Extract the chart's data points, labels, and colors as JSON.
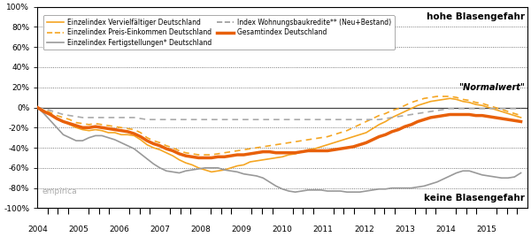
{
  "title_top_right": "hohe Blasengefahr",
  "title_bottom_right": "keine Blasengefahr",
  "normal_wert_label": "\"Normalwert\"",
  "empirica_label": "empirica",
  "ylim": [
    -1.0,
    1.0
  ],
  "yticks": [
    -1.0,
    -0.8,
    -0.6,
    -0.4,
    -0.2,
    0.0,
    0.2,
    0.4,
    0.6,
    0.8,
    1.0
  ],
  "yticklabels": [
    "-100%",
    "-80%",
    "-60%",
    "-40%",
    "-20%",
    "0%",
    "20%",
    "40%",
    "60%",
    "80%",
    "100%"
  ],
  "bg_color": "#ffffff",
  "plot_bg_color": "#ffffff",
  "border_color": "#000000",
  "grid_color": "#555555",
  "years": [
    2004,
    2005,
    2006,
    2007,
    2008,
    2009,
    2010,
    2011,
    2012,
    2013,
    2014,
    2015
  ],
  "series": {
    "vervielfaeltiger": [
      0.0,
      -0.03,
      -0.07,
      -0.11,
      -0.14,
      -0.17,
      -0.2,
      -0.22,
      -0.23,
      -0.22,
      -0.23,
      -0.25,
      -0.25,
      -0.27,
      -0.27,
      -0.28,
      -0.32,
      -0.37,
      -0.4,
      -0.42,
      -0.45,
      -0.48,
      -0.52,
      -0.55,
      -0.57,
      -0.6,
      -0.62,
      -0.64,
      -0.63,
      -0.62,
      -0.6,
      -0.58,
      -0.57,
      -0.54,
      -0.53,
      -0.52,
      -0.51,
      -0.5,
      -0.49,
      -0.47,
      -0.46,
      -0.44,
      -0.42,
      -0.41,
      -0.39,
      -0.37,
      -0.35,
      -0.33,
      -0.31,
      -0.29,
      -0.27,
      -0.25,
      -0.21,
      -0.17,
      -0.14,
      -0.1,
      -0.07,
      -0.04,
      -0.01,
      0.02,
      0.04,
      0.06,
      0.07,
      0.08,
      0.09,
      0.08,
      0.06,
      0.05,
      0.03,
      0.02,
      0.0,
      -0.02,
      -0.04,
      -0.06,
      -0.08,
      -0.1
    ],
    "preis_einkommen": [
      0.0,
      -0.02,
      -0.05,
      -0.08,
      -0.1,
      -0.12,
      -0.15,
      -0.16,
      -0.17,
      -0.16,
      -0.17,
      -0.18,
      -0.19,
      -0.2,
      -0.21,
      -0.22,
      -0.25,
      -0.3,
      -0.33,
      -0.35,
      -0.38,
      -0.4,
      -0.43,
      -0.45,
      -0.46,
      -0.47,
      -0.47,
      -0.47,
      -0.46,
      -0.45,
      -0.44,
      -0.43,
      -0.42,
      -0.41,
      -0.4,
      -0.39,
      -0.38,
      -0.37,
      -0.36,
      -0.35,
      -0.34,
      -0.33,
      -0.32,
      -0.31,
      -0.3,
      -0.29,
      -0.27,
      -0.25,
      -0.23,
      -0.2,
      -0.17,
      -0.14,
      -0.11,
      -0.08,
      -0.06,
      -0.03,
      -0.01,
      0.02,
      0.05,
      0.07,
      0.09,
      0.1,
      0.11,
      0.11,
      0.11,
      0.1,
      0.08,
      0.07,
      0.05,
      0.04,
      0.02,
      0.0,
      -0.02,
      -0.04,
      -0.06,
      -0.08
    ],
    "fertigstellungen": [
      0.0,
      -0.06,
      -0.13,
      -0.2,
      -0.27,
      -0.3,
      -0.33,
      -0.33,
      -0.3,
      -0.28,
      -0.28,
      -0.3,
      -0.32,
      -0.35,
      -0.38,
      -0.41,
      -0.46,
      -0.51,
      -0.56,
      -0.6,
      -0.63,
      -0.64,
      -0.65,
      -0.63,
      -0.62,
      -0.61,
      -0.6,
      -0.6,
      -0.6,
      -0.62,
      -0.63,
      -0.64,
      -0.66,
      -0.67,
      -0.68,
      -0.7,
      -0.74,
      -0.78,
      -0.81,
      -0.83,
      -0.84,
      -0.83,
      -0.82,
      -0.82,
      -0.82,
      -0.83,
      -0.83,
      -0.83,
      -0.84,
      -0.84,
      -0.84,
      -0.83,
      -0.82,
      -0.81,
      -0.81,
      -0.8,
      -0.8,
      -0.8,
      -0.8,
      -0.79,
      -0.78,
      -0.76,
      -0.74,
      -0.71,
      -0.68,
      -0.65,
      -0.63,
      -0.63,
      -0.65,
      -0.67,
      -0.68,
      -0.69,
      -0.7,
      -0.7,
      -0.69,
      -0.65
    ],
    "wohnungsbaukredite": [
      0.0,
      -0.01,
      -0.03,
      -0.05,
      -0.07,
      -0.08,
      -0.09,
      -0.1,
      -0.1,
      -0.1,
      -0.1,
      -0.1,
      -0.1,
      -0.1,
      -0.1,
      -0.1,
      -0.11,
      -0.12,
      -0.12,
      -0.12,
      -0.12,
      -0.12,
      -0.12,
      -0.12,
      -0.12,
      -0.12,
      -0.12,
      -0.12,
      -0.12,
      -0.12,
      -0.12,
      -0.12,
      -0.12,
      -0.12,
      -0.12,
      -0.12,
      -0.12,
      -0.12,
      -0.12,
      -0.12,
      -0.12,
      -0.12,
      -0.12,
      -0.12,
      -0.12,
      -0.12,
      -0.12,
      -0.12,
      -0.12,
      -0.12,
      -0.12,
      -0.12,
      -0.12,
      -0.12,
      -0.11,
      -0.1,
      -0.09,
      -0.08,
      -0.07,
      -0.06,
      -0.05,
      -0.04,
      -0.03,
      -0.02,
      -0.01,
      -0.01,
      -0.01,
      -0.01,
      -0.01,
      -0.01,
      -0.01,
      -0.01,
      -0.01,
      -0.01,
      -0.01,
      -0.01
    ],
    "gesamtindex": [
      0.0,
      -0.04,
      -0.07,
      -0.11,
      -0.14,
      -0.16,
      -0.18,
      -0.2,
      -0.2,
      -0.19,
      -0.2,
      -0.21,
      -0.22,
      -0.23,
      -0.24,
      -0.26,
      -0.29,
      -0.33,
      -0.36,
      -0.38,
      -0.41,
      -0.43,
      -0.46,
      -0.48,
      -0.49,
      -0.5,
      -0.5,
      -0.5,
      -0.49,
      -0.49,
      -0.48,
      -0.47,
      -0.47,
      -0.46,
      -0.45,
      -0.44,
      -0.44,
      -0.45,
      -0.45,
      -0.45,
      -0.45,
      -0.44,
      -0.43,
      -0.43,
      -0.43,
      -0.43,
      -0.42,
      -0.41,
      -0.4,
      -0.39,
      -0.37,
      -0.35,
      -0.32,
      -0.29,
      -0.27,
      -0.24,
      -0.22,
      -0.19,
      -0.17,
      -0.14,
      -0.12,
      -0.1,
      -0.09,
      -0.08,
      -0.07,
      -0.07,
      -0.07,
      -0.07,
      -0.08,
      -0.08,
      -0.09,
      -0.1,
      -0.11,
      -0.12,
      -0.13,
      -0.14
    ]
  },
  "legend_entries": [
    {
      "label": "Einzelindex Vervielfältiger Deutschland",
      "color": "#f5a623",
      "ls": "solid",
      "lw": 1.2
    },
    {
      "label": "Einzelindex Preis-Einkommen Deutschland",
      "color": "#f5a623",
      "ls": "dashed",
      "lw": 1.2
    },
    {
      "label": "Einzelindex Fertigstellungen* Deutschland",
      "color": "#999999",
      "ls": "solid",
      "lw": 1.2
    },
    {
      "label": "Index Wohnungsbaukredite** (Neu+Bestand)",
      "color": "#999999",
      "ls": "dashed",
      "lw": 1.2
    },
    {
      "label": "Gesamtindex Deutschland",
      "color": "#e8600a",
      "ls": "solid",
      "lw": 2.5
    }
  ]
}
